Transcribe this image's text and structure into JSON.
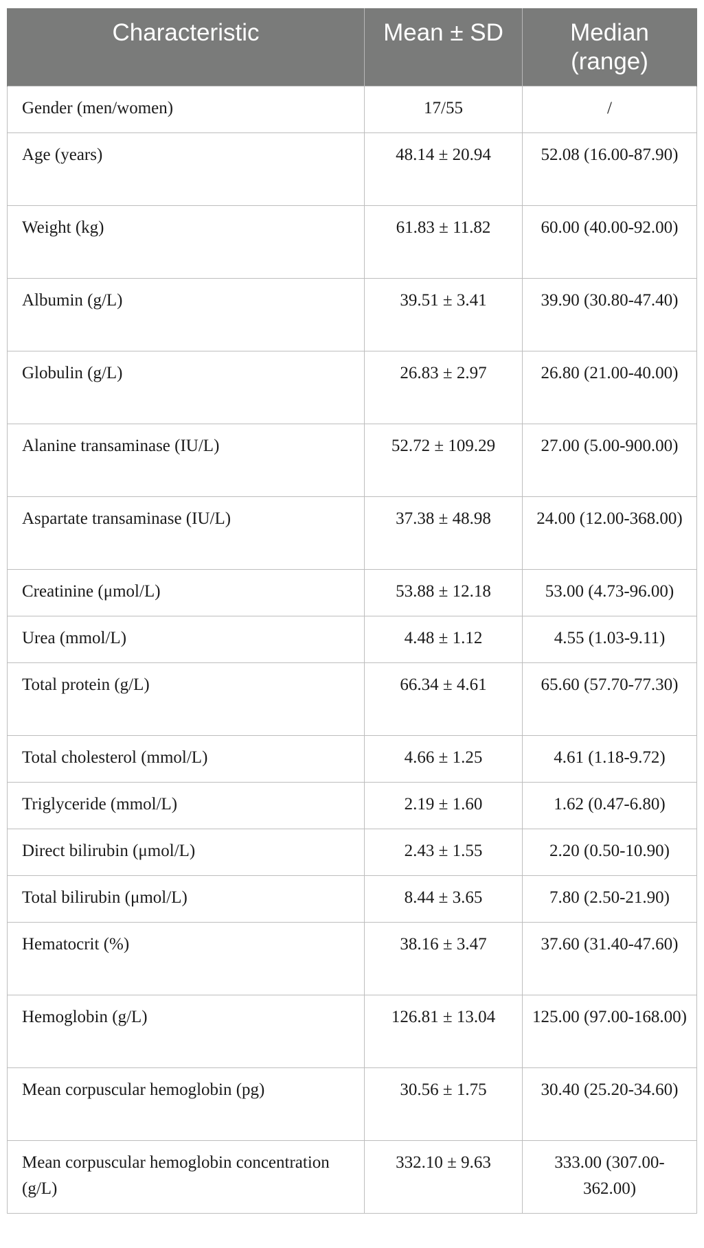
{
  "table": {
    "headers": {
      "characteristic": "Characteristic",
      "mean_sd": "Mean ± SD",
      "median_range": "Median (range)"
    },
    "rows": [
      {
        "characteristic": "Gender (men/women)",
        "mean_sd": "17/55",
        "median_range": "/"
      },
      {
        "characteristic": "Age (years)",
        "mean_sd": "48.14 ± 20.94",
        "median_range": "52.08 (16.00-87.90)"
      },
      {
        "characteristic": "Weight (kg)",
        "mean_sd": "61.83 ± 11.82",
        "median_range": "60.00 (40.00-92.00)"
      },
      {
        "characteristic": "Albumin (g/L)",
        "mean_sd": "39.51 ± 3.41",
        "median_range": "39.90 (30.80-47.40)"
      },
      {
        "characteristic": "Globulin (g/L)",
        "mean_sd": "26.83 ± 2.97",
        "median_range": "26.80 (21.00-40.00)"
      },
      {
        "characteristic": "Alanine transaminase (IU/L)",
        "mean_sd": "52.72 ± 109.29",
        "median_range": "27.00 (5.00-900.00)"
      },
      {
        "characteristic": "Aspartate transaminase (IU/L)",
        "mean_sd": "37.38 ± 48.98",
        "median_range": "24.00 (12.00-368.00)"
      },
      {
        "characteristic": "Creatinine (μmol/L)",
        "mean_sd": "53.88 ± 12.18",
        "median_range": "53.00 (4.73-96.00)"
      },
      {
        "characteristic": "Urea (mmol/L)",
        "mean_sd": "4.48 ± 1.12",
        "median_range": "4.55 (1.03-9.11)"
      },
      {
        "characteristic": "Total protein (g/L)",
        "mean_sd": "66.34 ± 4.61",
        "median_range": "65.60 (57.70-77.30)"
      },
      {
        "characteristic": "Total cholesterol (mmol/L)",
        "mean_sd": "4.66 ± 1.25",
        "median_range": "4.61 (1.18-9.72)"
      },
      {
        "characteristic": "Triglyceride (mmol/L)",
        "mean_sd": "2.19 ± 1.60",
        "median_range": "1.62 (0.47-6.80)"
      },
      {
        "characteristic": "Direct bilirubin (μmol/L)",
        "mean_sd": "2.43 ± 1.55",
        "median_range": "2.20 (0.50-10.90)"
      },
      {
        "characteristic": "Total bilirubin (μmol/L)",
        "mean_sd": "8.44 ± 3.65",
        "median_range": "7.80 (2.50-21.90)"
      },
      {
        "characteristic": "Hematocrit (%)",
        "mean_sd": "38.16 ± 3.47",
        "median_range": "37.60 (31.40-47.60)"
      },
      {
        "characteristic": "Hemoglobin (g/L)",
        "mean_sd": "126.81 ± 13.04",
        "median_range": "125.00 (97.00-168.00)"
      },
      {
        "characteristic": "Mean corpuscular hemoglobin (pg)",
        "mean_sd": "30.56 ± 1.75",
        "median_range": "30.40 (25.20-34.60)"
      },
      {
        "characteristic": "Mean corpuscular hemoglobin concentration (g/L)",
        "mean_sd": "332.10 ± 9.63",
        "median_range": "333.00 (307.00-362.00)"
      }
    ]
  },
  "colors": {
    "header_background": "#7a7b7a",
    "header_text": "#ffffff",
    "grid_lines": "#bdbdbd"
  }
}
